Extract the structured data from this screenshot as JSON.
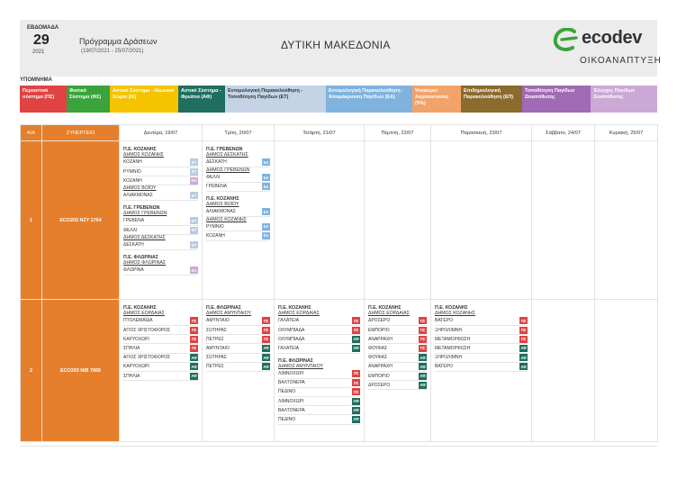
{
  "header": {
    "week_label": "ΕΒΔΟΜΑΔΑ",
    "week_number": "29",
    "year": "2021",
    "program_title": "Πρόγραμμα Δράσεων",
    "program_dates": "(19/07/2021 - 25/07/2021)",
    "region": "ΔΥΤΙΚΗ ΜΑΚΕΔΟΝΙΑ",
    "logo_text": "ecodev",
    "logo_subtitle": "ΟΙΚΟΑΝΑΠΤΥΞΗ",
    "logo_color": "#3aa33b"
  },
  "legend": {
    "title": "ΥΠΟΜΝΗΜΑ",
    "items": [
      {
        "label": "Περιαστικό σύστημα (ΠΣ)",
        "color": "#e04343",
        "text_color": "#ffffff"
      },
      {
        "label": "Φυσικό Σύστημα (ΦΣ)",
        "color": "#3aa33b",
        "text_color": "#ffffff"
      },
      {
        "label": "Αστικό Σύστημα - Ιδιωτικοί Χώροι (ΙΧ)",
        "color": "#f5c300",
        "text_color": "#ffffff"
      },
      {
        "label": "Αστικό Σύστημα - Φρεάτια (ΑΦ)",
        "color": "#1f6e5e",
        "text_color": "#ffffff"
      },
      {
        "label": "Εντομολογική Παρακολούθηση - Τοποθέτηση Παγίδων (ΕΤ)",
        "color": "#c4d3e6",
        "text_color": "#333333"
      },
      {
        "label": "Εντομολογική Παρακολούθηση - Απομάκρυνση Παγίδων (ΕΑ)",
        "color": "#7fb3dd",
        "text_color": "#ffffff"
      },
      {
        "label": "Ψεκασμοί Ακμαιοκτονίας (ΨΑ)",
        "color": "#f2a36a",
        "text_color": "#ffffff"
      },
      {
        "label": "Επιδημιολογική Παρακολούθηση (ΕΠ)",
        "color": "#8b6b2e",
        "text_color": "#ffffff"
      },
      {
        "label": "Τοποθέτηση Παγίδων Ωοαπόθεσης",
        "color": "#a06bb4",
        "text_color": "#ffffff"
      },
      {
        "label": "Έλεγχος Παγίδων Ωοαπόθεσης",
        "color": "#cba8d6",
        "text_color": "#ffffff"
      }
    ]
  },
  "tag_colors": {
    "ET": "#b8cbe3",
    "EA": "#7fb3dd",
    "EO": "#cba8d6",
    "PS": "#e04343",
    "AF": "#1f6e5e"
  },
  "tag_labels": {
    "ET": "ΕΤ",
    "EA": "ΕΑ",
    "EO": "ΕΟ",
    "PS": "ΠΣ",
    "AF": "ΑΦ"
  },
  "table": {
    "col_aa": "Α/Α",
    "col_synergeio": "ΣΥΝΕΡΓΕΙΟ",
    "days": [
      "Δευτέρα, 19/07",
      "Τρίτη, 20/07",
      "Τετάρτη, 21/07",
      "Πέμπτη, 22/07",
      "Παρασκευή, 23/07",
      "Σάββατο, 24/07",
      "Κυριακή, 25/07"
    ],
    "rows": [
      {
        "aa": "1",
        "synergeio": "ECO202  NZY 1764",
        "days": [
          [
            {
              "title": "Π.Ε. ΚΟΖΑΝΗΣ",
              "sub": "ΔΗΜΟΣ ΚΟΖΑΝΗΣ",
              "items": [
                {
                  "name": "ΚΟΖΑΝΗ",
                  "tag": "ET"
                },
                {
                  "name": "ΡΥΜΝΙΟ",
                  "tag": "ET"
                },
                {
                  "name": "ΚΟΖΑΝΗ",
                  "tag": "EO"
                },
                {
                  "sub": "ΔΗΜΟΣ ΒΟΪΟΥ"
                },
                {
                  "name": "ΑΛΙΑΚΜΟΝΑΣ",
                  "tag": "ET"
                }
              ]
            },
            {
              "title": "Π.Ε. ΓΡΕΒΕΝΩΝ",
              "sub": "ΔΗΜΟΣ ΓΡΕΒΕΝΩΝ",
              "items": [
                {
                  "name": "ΓΡΕΒΕΝΑ",
                  "tag": "ET"
                },
                {
                  "name": "ΦΕΛΛΙ",
                  "tag": "ET"
                },
                {
                  "sub": "ΔΗΜΟΣ ΔΕΣΚΑΤΗΣ"
                },
                {
                  "name": "ΔΕΣΚΑΤΗ",
                  "tag": "ET"
                }
              ]
            },
            {
              "title": "Π.Ε. ΦΛΩΡΙΝΑΣ",
              "sub": "ΔΗΜΟΣ ΦΛΩΡΙΝΑΣ",
              "items": [
                {
                  "name": "ΦΛΩΡΙΝΑ",
                  "tag": "EO"
                }
              ]
            }
          ],
          [
            {
              "title": "Π.Ε. ΓΡΕΒΕΝΩΝ",
              "sub": "ΔΗΜΟΣ ΔΕΣΚΑΤΗΣ",
              "items": [
                {
                  "name": "ΔΕΣΚΑΤΗ",
                  "tag": "EA"
                },
                {
                  "sub": "ΔΗΜΟΣ ΓΡΕΒΕΝΩΝ"
                },
                {
                  "name": "ΦΕΛΛΙ",
                  "tag": "EA"
                },
                {
                  "name": "ΓΡΕΒΕΝΑ",
                  "tag": "EA"
                }
              ]
            },
            {
              "title": "Π.Ε. ΚΟΖΑΝΗΣ",
              "sub": "ΔΗΜΟΣ ΒΟΪΟΥ",
              "items": [
                {
                  "name": "ΑΛΙΑΚΜΟΝΑΣ",
                  "tag": "EA"
                },
                {
                  "sub": "ΔΗΜΟΣ ΚΟΖΑΝΗΣ"
                },
                {
                  "name": "ΡΥΜΝΙΟ",
                  "tag": "EA"
                },
                {
                  "name": "ΚΟΖΑΝΗ",
                  "tag": "EA"
                }
              ]
            }
          ],
          [],
          [],
          [],
          [],
          []
        ]
      },
      {
        "aa": "2",
        "synergeio": "ECO203  NIB 7895",
        "days": [
          [
            {
              "title": "Π.Ε. ΚΟΖΑΝΗΣ",
              "sub": "ΔΗΜΟΣ ΕΟΡΔΑΙΑΣ",
              "items": [
                {
                  "name": "ΠΤΟΛΕΜΑΪΔΑ",
                  "tag": "PS"
                },
                {
                  "name": "ΑΓΙΟΣ ΧΡΙΣΤΟΦΟΡΟΣ",
                  "tag": "PS"
                },
                {
                  "name": "ΚΑΡΥΟΧΩΡΙ",
                  "tag": "PS"
                },
                {
                  "name": "ΣΠΗΛΙΑ",
                  "tag": "PS"
                },
                {
                  "name": "ΑΓΙΟΣ ΧΡΙΣΤΟΦΟΡΟΣ",
                  "tag": "AF"
                },
                {
                  "name": "ΚΑΡΥΟΧΩΡΙ",
                  "tag": "AF"
                },
                {
                  "name": "ΣΠΗΛΙΑ",
                  "tag": "AF"
                }
              ]
            }
          ],
          [
            {
              "title": "Π.Ε. ΦΛΩΡΙΝΑΣ",
              "sub": "ΔΗΜΟΣ ΑΜΥΝΤΑΙΟΥ",
              "items": [
                {
                  "name": "ΑΜΥΝΤΑΙΟ",
                  "tag": "PS"
                },
                {
                  "name": "ΣΩΤΗΡΑΣ",
                  "tag": "PS"
                },
                {
                  "name": "ΠΕΤΡΕΣ",
                  "tag": "PS"
                },
                {
                  "name": "ΑΜΥΝΤΑΙΟ",
                  "tag": "AF"
                },
                {
                  "name": "ΣΩΤΗΡΑΣ",
                  "tag": "AF"
                },
                {
                  "name": "ΠΕΤΡΕΣ",
                  "tag": "AF"
                }
              ]
            }
          ],
          [
            {
              "title": "Π.Ε. ΚΟΖΑΝΗΣ",
              "sub": "ΔΗΜΟΣ ΕΟΡΔΑΙΑΣ",
              "items": [
                {
                  "name": "ΓΑΛΑΤΕΙΑ",
                  "tag": "PS"
                },
                {
                  "name": "ΟΛΥΜΠΙΑΔΑ",
                  "tag": "PS"
                },
                {
                  "name": "ΟΛΥΜΠΙΑΔΑ",
                  "tag": "AF"
                },
                {
                  "name": "ΓΑΛΑΤΕΙΑ",
                  "tag": "AF"
                }
              ]
            },
            {
              "title": "Π.Ε. ΦΛΩΡΙΝΑΣ",
              "sub": "ΔΗΜΟΣ ΑΜΥΝΤΑΙΟΥ",
              "items": [
                {
                  "name": "ΛΙΜΝΟΧΩΡΙ",
                  "tag": "PS"
                },
                {
                  "name": "ΒΑΛΤΟΝΕΡΑ",
                  "tag": "PS"
                },
                {
                  "name": "ΠΕΔΙΝΟ",
                  "tag": "PS"
                },
                {
                  "name": "ΛΙΜΝΟΧΩΡΙ",
                  "tag": "AF"
                },
                {
                  "name": "ΒΑΛΤΟΝΕΡΑ",
                  "tag": "AF"
                },
                {
                  "name": "ΠΕΔΙΝΟ",
                  "tag": "AF"
                }
              ]
            }
          ],
          [
            {
              "title": "Π.Ε. ΚΟΖΑΝΗΣ",
              "sub": "ΔΗΜΟΣ ΕΟΡΔΑΙΑΣ",
              "items": [
                {
                  "name": "ΔΡΟΣΕΡΟ",
                  "tag": "PS"
                },
                {
                  "name": "ΕΜΠΟΡΙΟ",
                  "tag": "PS"
                },
                {
                  "name": "ΑΝΑΡΡΑΧΗ",
                  "tag": "PS"
                },
                {
                  "name": "ΦΟΥΦΑΣ",
                  "tag": "PS"
                },
                {
                  "name": "ΦΟΥΦΑΣ",
                  "tag": "AF"
                },
                {
                  "name": "ΑΝΑΡΡΑΧΗ",
                  "tag": "AF"
                },
                {
                  "name": "ΕΜΠΟΡΙΟ",
                  "tag": "AF"
                },
                {
                  "name": "ΔΡΟΣΕΡΟ",
                  "tag": "AF"
                }
              ]
            }
          ],
          [
            {
              "title": "Π.Ε. ΚΟΖΑΝΗΣ",
              "sub": "ΔΗΜΟΣ ΚΟΖΑΝΗΣ",
              "items": [
                {
                  "name": "ΒΑΤΕΡΟ",
                  "tag": "PS"
                },
                {
                  "name": "ΞΗΡΟΛΙΜΝΗ",
                  "tag": "PS"
                },
                {
                  "name": "ΜΕΤΑΜΟΡΦΩΣΗ",
                  "tag": "PS"
                },
                {
                  "name": "ΜΕΤΑΜΟΡΦΩΣΗ",
                  "tag": "AF"
                },
                {
                  "name": "ΞΗΡΟΛΙΜΝΗ",
                  "tag": "AF"
                },
                {
                  "name": "ΒΑΤΕΡΟ",
                  "tag": "AF"
                }
              ]
            }
          ],
          [],
          []
        ]
      }
    ]
  }
}
